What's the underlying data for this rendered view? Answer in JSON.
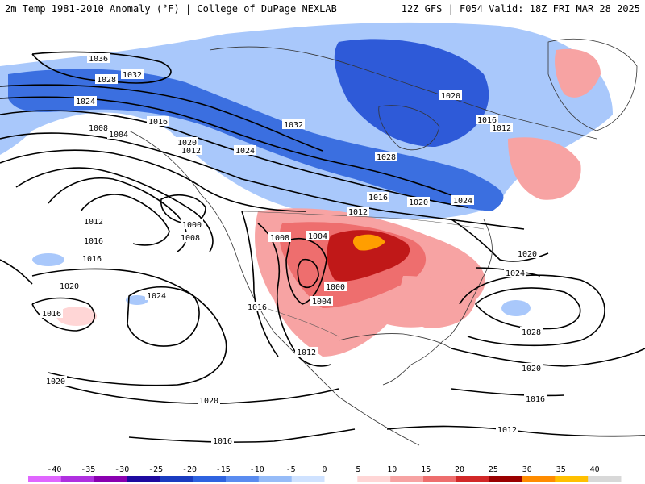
{
  "header": {
    "title_left": "2m Temp 1981-2010 Anomaly (°F) | College of DuPage NEXLAB",
    "title_right": "12Z GFS | F054 Valid: 18Z FRI MAR 28 2025"
  },
  "contour_labels": [
    "1036",
    "1032",
    "1028",
    "1024",
    "1020",
    "1016",
    "1012",
    "1008",
    "1004",
    "1000",
    "1032",
    "1028",
    "1024",
    "1020",
    "1016",
    "1012",
    "1008",
    "1004",
    "1000",
    "1004",
    "1008",
    "1012",
    "1016",
    "1020",
    "1024",
    "1028",
    "1024",
    "1020",
    "1016",
    "1012",
    "1020",
    "1016",
    "1024",
    "1020",
    "1016",
    "1020",
    "1016",
    "1012",
    "1012",
    "1016",
    "1020",
    "1016"
  ],
  "legend": {
    "ticks": [
      "-40",
      "-35",
      "-30",
      "-25",
      "-20",
      "-15",
      "-10",
      "-5",
      "0",
      "5",
      "10",
      "15",
      "20",
      "25",
      "30",
      "35",
      "40"
    ],
    "colors": [
      "#e066ff",
      "#b030e0",
      "#8a00b0",
      "#1e0aa0",
      "#1a3cc0",
      "#2e63e0",
      "#5a8cf0",
      "#96bcf8",
      "#cfe2ff",
      "#ffffff",
      "#ffd6d6",
      "#f7a3a3",
      "#ee6e6e",
      "#d22828",
      "#9a0000",
      "#ff8c00",
      "#ffc000",
      "#d8d8d8"
    ]
  },
  "colors": {
    "cold": "#3b6fe0",
    "cold_light": "#a9c8fb",
    "warm": "#f08a8a",
    "warm_dark": "#c01818",
    "hot": "#ff9e00"
  }
}
